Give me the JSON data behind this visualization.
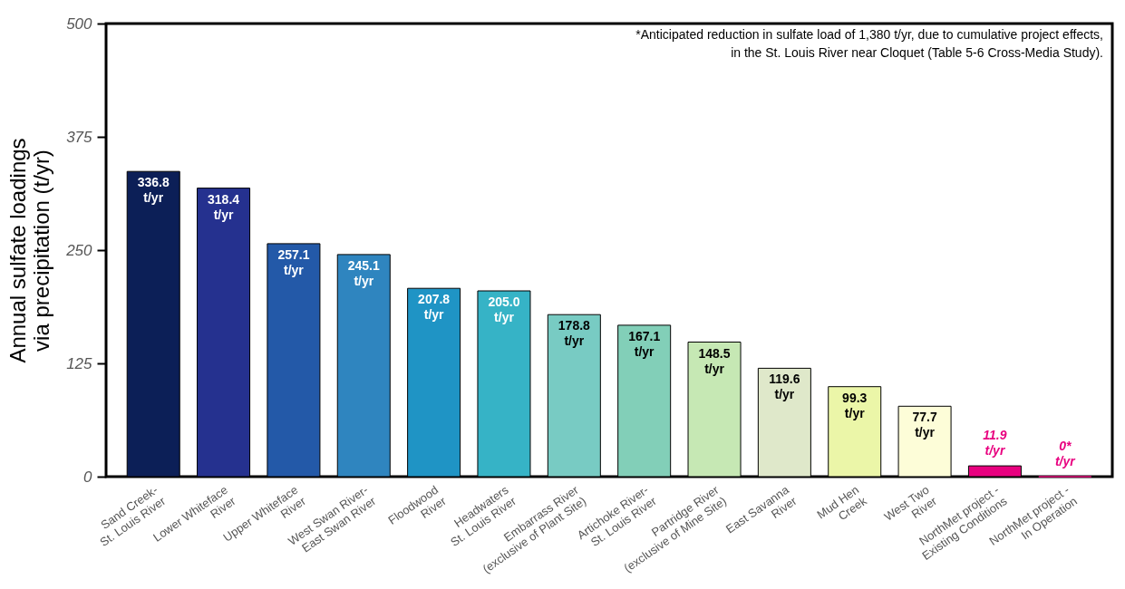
{
  "chart_data": {
    "type": "bar",
    "ylabel": "Annual sulfate loadings\nvia precipitation  (t/yr)",
    "annotations": [
      "*Anticipated reduction in sulfate load of 1,380 t/yr, due to cumulative project effects,\nin the St. Louis River near Cloquet (Table 5-6 Cross-Media Study)."
    ],
    "categories": [
      "Sand Creek-\nSt. Louis River",
      "Lower Whiteface\nRiver",
      "Upper Whiteface\nRiver",
      "West Swan River-\nEast Swan River",
      "Floodwood\nRiver",
      "Headwaters\nSt. Louis River",
      "Embarrass  River\n(exclusive of Plant Site)",
      "Artichoke River-\nSt. Louis River",
      "Partridge River\n(exclusive of Mine Site)",
      "East Savanna\nRiver",
      "Mud Hen\nCreek",
      "West Two\nRiver",
      "NorthMet project -\nExisting Conditions",
      "NorthMet project -\nIn Operation"
    ],
    "values": [
      336.8,
      318.4,
      257.1,
      245.1,
      207.8,
      205.0,
      178.8,
      167.1,
      148.5,
      119.6,
      99.3,
      77.7,
      11.9,
      0
    ],
    "value_labels": [
      "336.8\nt/yr",
      "318.4\nt/yr",
      "257.1\nt/yr",
      "245.1\nt/yr",
      "207.8\nt/yr",
      "205.0\nt/yr",
      "178.8\nt/yr",
      "167.1\nt/yr",
      "148.5\nt/yr",
      "119.6\nt/yr",
      "99.3\nt/yr",
      "77.7\nt/yr",
      "11.9\nt/yr",
      "0*\nt/yr"
    ],
    "colors": [
      "#0c1f57",
      "#25318f",
      "#2359a8",
      "#2f85bf",
      "#1f94c5",
      "#36b3c6",
      "#78cbc3",
      "#82cfb8",
      "#c6e8b4",
      "#dfe8ca",
      "#ebf6a8",
      "#fdfdd8",
      "#e8007f",
      "#e8007f"
    ],
    "ylim": [
      0,
      500
    ],
    "yticks": [
      0,
      125,
      250,
      375,
      500
    ],
    "grid": false
  }
}
